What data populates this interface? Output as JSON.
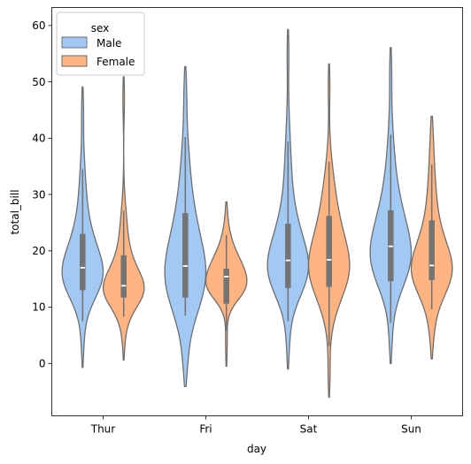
{
  "chart_data": {
    "type": "violin",
    "categories": [
      "Thur",
      "Fri",
      "Sat",
      "Sun"
    ],
    "xlabel": "day",
    "ylabel": "total_bill",
    "ylim": [
      -9.3,
      63.2
    ],
    "yticks": [
      0,
      10,
      20,
      30,
      40,
      50,
      60
    ],
    "grid": false,
    "legend": {
      "title": "sex",
      "placement": "top-left",
      "entries": [
        "Male",
        "Female"
      ]
    },
    "series": [
      {
        "name": "Male",
        "color": "#a1c9f4",
        "violins": [
          {
            "category": "Thur",
            "min": 7.5,
            "q1": 13,
            "median": 17,
            "q3": 23,
            "max": 34.5,
            "kde_min": -0.7,
            "kde_max": 49.1
          },
          {
            "category": "Fri",
            "min": 8.5,
            "q1": 11.7,
            "median": 17.3,
            "q3": 26.7,
            "max": 40.2,
            "kde_min": -4.1,
            "kde_max": 52.7
          },
          {
            "category": "Sat",
            "min": 7.5,
            "q1": 13.4,
            "median": 18.3,
            "q3": 24.8,
            "max": 39.4,
            "kde_min": -1.0,
            "kde_max": 59.3
          },
          {
            "category": "Sun",
            "min": 7.2,
            "q1": 14.6,
            "median": 20.8,
            "q3": 27.2,
            "max": 40.6,
            "kde_min": 0.0,
            "kde_max": 56.1
          }
        ]
      },
      {
        "name": "Female",
        "color": "#ffb482",
        "violins": [
          {
            "category": "Thur",
            "min": 8.3,
            "q1": 11.7,
            "median": 13.8,
            "q3": 19.2,
            "max": 27.1,
            "kde_min": 0.6,
            "kde_max": 50.9
          },
          {
            "category": "Fri",
            "min": 5.8,
            "q1": 10.6,
            "median": 15.4,
            "q3": 16.8,
            "max": 22.8,
            "kde_min": -0.5,
            "kde_max": 28.7
          },
          {
            "category": "Sat",
            "min": 3.1,
            "q1": 13.6,
            "median": 18.4,
            "q3": 26.2,
            "max": 35.8,
            "kde_min": -6.0,
            "kde_max": 53.2
          },
          {
            "category": "Sun",
            "min": 9.6,
            "q1": 14.8,
            "median": 17.4,
            "q3": 25.4,
            "max": 35.3,
            "kde_min": 0.8,
            "kde_max": 43.9
          }
        ]
      }
    ]
  }
}
